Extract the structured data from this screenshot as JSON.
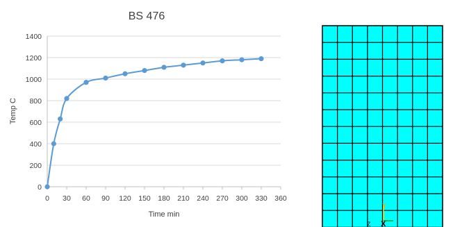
{
  "chart_data": {
    "type": "line",
    "title": "BS 476",
    "xlabel": "Time min",
    "ylabel": "Temp C",
    "xlim": [
      0,
      360
    ],
    "ylim": [
      0,
      1400
    ],
    "xticks": [
      0,
      30,
      60,
      90,
      120,
      150,
      180,
      210,
      240,
      270,
      300,
      330,
      360
    ],
    "yticks": [
      0,
      200,
      400,
      600,
      800,
      1000,
      1200,
      1400
    ],
    "grid": "horizontal",
    "series": [
      {
        "color": "#5b9bd5",
        "x": [
          0,
          10,
          20,
          30,
          60,
          90,
          120,
          150,
          180,
          210,
          240,
          270,
          300,
          330
        ],
        "y": [
          0,
          400,
          630,
          820,
          970,
          1010,
          1050,
          1080,
          1110,
          1130,
          1150,
          1170,
          1180,
          1190
        ]
      }
    ]
  },
  "mesh": {
    "fill_color": "#00ffff",
    "line_color": "#000000",
    "columns": 8,
    "rows": 13,
    "triad": {
      "y_label": "Y",
      "x_label": "X",
      "z_label": "Z"
    }
  }
}
